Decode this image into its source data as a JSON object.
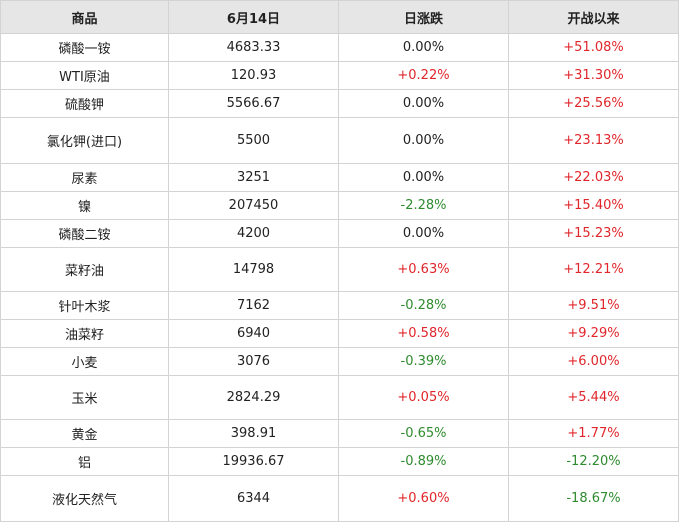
{
  "table": {
    "headers": [
      "商品",
      "6月14日",
      "日涨跌",
      "开战以来"
    ],
    "rows": [
      {
        "name": "磷酸一铵",
        "price": "4683.33",
        "daily": "0.00%",
        "daily_dir": "flat",
        "since": "+51.08%",
        "since_dir": "up"
      },
      {
        "name": "WTI原油",
        "price": "120.93",
        "daily": "+0.22%",
        "daily_dir": "up",
        "since": "+31.30%",
        "since_dir": "up"
      },
      {
        "name": "硫酸钾",
        "price": "5566.67",
        "daily": "0.00%",
        "daily_dir": "flat",
        "since": "+25.56%",
        "since_dir": "up"
      },
      {
        "name": "氯化钾(进口)",
        "price": "5500",
        "daily": "0.00%",
        "daily_dir": "flat",
        "since": "+23.13%",
        "since_dir": "up"
      },
      {
        "name": "尿素",
        "price": "3251",
        "daily": "0.00%",
        "daily_dir": "flat",
        "since": "+22.03%",
        "since_dir": "up"
      },
      {
        "name": "镍",
        "price": "207450",
        "daily": "-2.28%",
        "daily_dir": "down",
        "since": "+15.40%",
        "since_dir": "up"
      },
      {
        "name": "磷酸二铵",
        "price": "4200",
        "daily": "0.00%",
        "daily_dir": "flat",
        "since": "+15.23%",
        "since_dir": "up"
      },
      {
        "name": "菜籽油",
        "price": "14798",
        "daily": "+0.63%",
        "daily_dir": "up",
        "since": "+12.21%",
        "since_dir": "up"
      },
      {
        "name": "针叶木浆",
        "price": "7162",
        "daily": "-0.28%",
        "daily_dir": "down",
        "since": "+9.51%",
        "since_dir": "up"
      },
      {
        "name": "油菜籽",
        "price": "6940",
        "daily": "+0.58%",
        "daily_dir": "up",
        "since": "+9.29%",
        "since_dir": "up"
      },
      {
        "name": "小麦",
        "price": "3076",
        "daily": "-0.39%",
        "daily_dir": "down",
        "since": "+6.00%",
        "since_dir": "up"
      },
      {
        "name": "玉米",
        "price": "2824.29",
        "daily": "+0.05%",
        "daily_dir": "up",
        "since": "+5.44%",
        "since_dir": "up"
      },
      {
        "name": "黄金",
        "price": "398.91",
        "daily": "-0.65%",
        "daily_dir": "down",
        "since": "+1.77%",
        "since_dir": "up"
      },
      {
        "name": "铝",
        "price": "19936.67",
        "daily": "-0.89%",
        "daily_dir": "down",
        "since": "-12.20%",
        "since_dir": "down"
      },
      {
        "name": "液化天然气",
        "price": "6344",
        "daily": "+0.60%",
        "daily_dir": "up",
        "since": "-18.67%",
        "since_dir": "down"
      }
    ]
  },
  "colors": {
    "up": "#e0262b",
    "down": "#2e8b2e",
    "header_bg": "#e6e6e6"
  }
}
